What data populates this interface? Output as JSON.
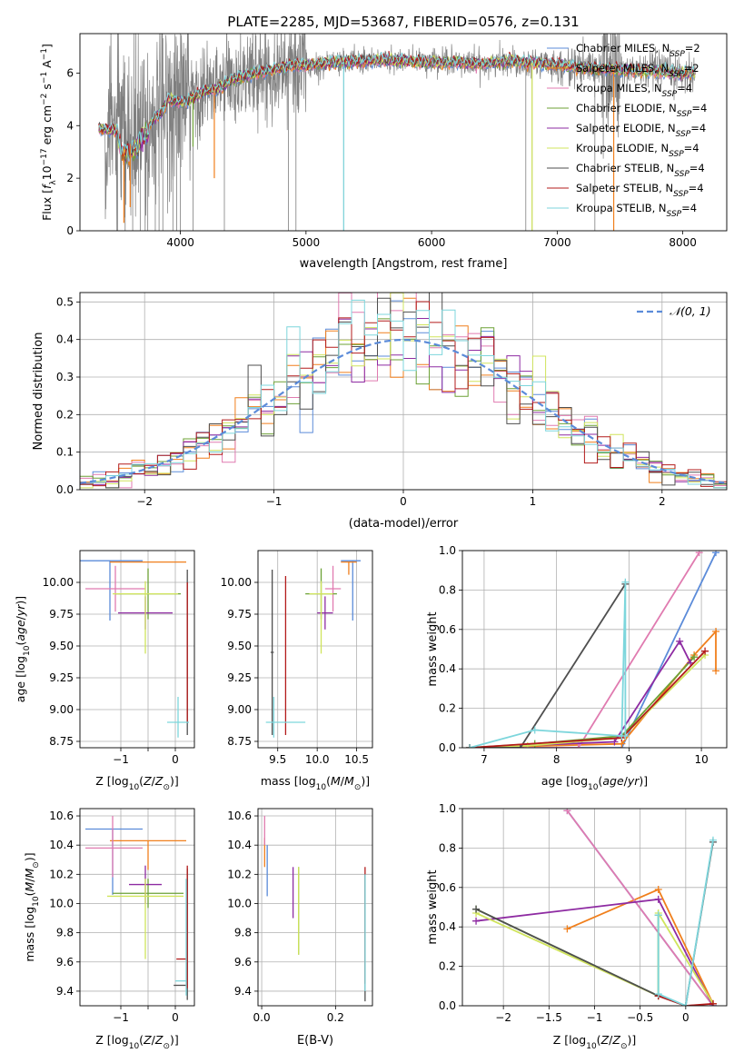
{
  "title": "PLATE=2285, MJD=53687, FIBERID=0576, z=0.131",
  "colors": {
    "c0": "#5b8bd9",
    "c1": "#f07f1c",
    "c2": "#e07bb0",
    "c3": "#6ca136",
    "c4": "#8e2ba2",
    "c5": "#d0e45c",
    "c6": "#4f4f4f",
    "c7": "#b31b1b",
    "c8": "#7dd6dc",
    "data": "#7f7f7f",
    "normal": "#5b8bd9",
    "grid": "#b0b0b0"
  },
  "legend_models": [
    {
      "base": "Chabrier MILES, N",
      "sub": "SSP",
      "eq": "=2"
    },
    {
      "base": "Salpeter MILES, N",
      "sub": "SSP",
      "eq": "=2"
    },
    {
      "base": "Kroupa MILES, N",
      "sub": "SSP",
      "eq": "=4"
    },
    {
      "base": "Chabrier ELODIE, N",
      "sub": "SSP",
      "eq": "=4"
    },
    {
      "base": "Salpeter ELODIE, N",
      "sub": "SSP",
      "eq": "=4"
    },
    {
      "base": "Kroupa ELODIE, N",
      "sub": "SSP",
      "eq": "=4"
    },
    {
      "base": "Chabrier STELIB, N",
      "sub": "SSP",
      "eq": "=4"
    },
    {
      "base": "Salpeter STELIB, N",
      "sub": "SSP",
      "eq": "=4"
    },
    {
      "base": "Kroupa STELIB, N",
      "sub": "SSP",
      "eq": "=4"
    }
  ],
  "chart_data": [
    {
      "id": "spectrum",
      "type": "line",
      "xlabel": "wavelength [Angstrom, rest frame]",
      "ylabel": "Flux [fλ10⁻¹⁷ erg cm⁻² s⁻¹ A⁻¹]",
      "xlim": [
        3200,
        8350
      ],
      "ylim": [
        0,
        7.5
      ],
      "xticks": [
        4000,
        5000,
        6000,
        7000,
        8000
      ],
      "yticks": [
        0,
        2,
        4,
        6
      ],
      "grid": false,
      "legend_position": "top-right",
      "model_continuum": {
        "x": [
          3350,
          3500,
          3550,
          3650,
          3700,
          3750,
          3800,
          3850,
          3900,
          4000,
          4050,
          4100,
          4200,
          4300,
          4400,
          4500,
          4600,
          4700,
          4800,
          4900,
          5000,
          5200,
          5400,
          5600,
          5800,
          6000,
          6200,
          6400,
          6600,
          6800,
          7000,
          7200,
          7400,
          7600,
          7800,
          8000,
          8100
        ],
        "y": [
          3.9,
          3.8,
          3.2,
          3.4,
          3.9,
          4.0,
          4.3,
          4.5,
          5.0,
          4.9,
          4.9,
          5.1,
          5.3,
          5.4,
          5.7,
          5.9,
          6.0,
          6.1,
          6.2,
          6.3,
          6.3,
          6.4,
          6.45,
          6.5,
          6.45,
          6.4,
          6.4,
          6.35,
          6.45,
          6.4,
          6.3,
          6.2,
          6.15,
          6.1,
          6.05,
          6.0,
          6.0
        ]
      },
      "data_series": {
        "name": "data",
        "x_range": [
          3350,
          8100
        ],
        "noise_spikes_x": [
          3500,
          3560,
          3620,
          3680,
          3740,
          3800,
          3830,
          3860,
          3940,
          3970,
          4000,
          4100,
          4350,
          4860,
          4920,
          5300,
          6750,
          6800,
          7300,
          7450
        ]
      }
    },
    {
      "id": "residual_histogram",
      "type": "histogram",
      "xlabel": "(data-model)/error",
      "ylabel": "Normed distribution",
      "xlim": [
        -2.5,
        2.5
      ],
      "ylim": [
        0,
        0.525
      ],
      "xticks": [
        -2,
        -1,
        0,
        1,
        2
      ],
      "yticks": [
        0.0,
        0.1,
        0.2,
        0.3,
        0.4,
        0.5
      ],
      "grid": true,
      "legend_position": "top-right",
      "reference_curve": {
        "name": "𝒩(0, 1)",
        "mean": 0,
        "std": 1
      },
      "bin_width": 0.1
    },
    {
      "id": "age_vs_Z",
      "type": "errorbar",
      "xlabel": "Z [log10(Z/Z⊙)]",
      "ylabel": "age  [log10(age/yr)]",
      "xlim": [
        -1.75,
        0.35
      ],
      "ylim": [
        8.7,
        10.25
      ],
      "xticks": [
        -1,
        -0.5,
        0
      ],
      "xticklabels": [
        "−1",
        "",
        "0"
      ],
      "yticks": [
        8.75,
        9.0,
        9.25,
        9.5,
        9.75,
        10.0
      ],
      "series": [
        {
          "color": "c0",
          "x": -1.2,
          "y": 10.17,
          "xerr": [
            0.6,
            0.6
          ],
          "yerr": [
            0.47,
            0
          ]
        },
        {
          "color": "c1",
          "x": -0.5,
          "y": 10.16,
          "xerr": [
            0.7,
            0.7
          ],
          "yerr": [
            0,
            0
          ]
        },
        {
          "color": "c2",
          "x": -1.1,
          "y": 9.95,
          "xerr": [
            0.55,
            0.55
          ],
          "yerr": [
            0.18,
            0.18
          ]
        },
        {
          "color": "c3",
          "x": -0.5,
          "y": 9.91,
          "xerr": [
            0.6,
            0.6
          ],
          "yerr": [
            0.2,
            0.2
          ]
        },
        {
          "color": "c4",
          "x": -0.55,
          "y": 9.76,
          "xerr": [
            0.5,
            0.5
          ],
          "yerr": [
            0.13,
            0.13
          ]
        },
        {
          "color": "c5",
          "x": -0.55,
          "y": 9.91,
          "xerr": [
            0.6,
            0.6
          ],
          "yerr": [
            0.47,
            0.1
          ]
        },
        {
          "color": "c6",
          "x": 0.22,
          "y": 9.45,
          "xerr": [
            0,
            0
          ],
          "yerr": [
            0.65,
            0.65
          ]
        },
        {
          "color": "c7",
          "x": 0.22,
          "y": 9.45,
          "xerr": [
            0,
            0
          ],
          "yerr": [
            0.55,
            0.55
          ]
        },
        {
          "color": "c8",
          "x": 0.05,
          "y": 8.9,
          "xerr": [
            0.2,
            0.2
          ],
          "yerr": [
            0.12,
            0.2
          ]
        }
      ]
    },
    {
      "id": "age_vs_mass",
      "type": "errorbar",
      "xlabel": "mass [log10(M/M⊙)]",
      "ylabel": "",
      "xlim": [
        9.25,
        10.7
      ],
      "ylim": [
        8.7,
        10.25
      ],
      "xticks": [
        9.5,
        10.0,
        10.5
      ],
      "xticklabels": [
        "9.5",
        "10.0",
        "10.5"
      ],
      "yticks": [
        8.75,
        9.0,
        9.25,
        9.5,
        9.75,
        10.0
      ],
      "series": [
        {
          "color": "c0",
          "x": 10.45,
          "y": 10.17,
          "xerr": [
            0.15,
            0.1
          ],
          "yerr": [
            0.47,
            0
          ]
        },
        {
          "color": "c1",
          "x": 10.4,
          "y": 10.16,
          "xerr": [
            0.1,
            0.1
          ],
          "yerr": [
            0.1,
            0
          ]
        },
        {
          "color": "c2",
          "x": 10.2,
          "y": 9.95,
          "xerr": [
            0.1,
            0.1
          ],
          "yerr": [
            0.18,
            0.18
          ]
        },
        {
          "color": "c3",
          "x": 10.05,
          "y": 9.91,
          "xerr": [
            0.2,
            0.2
          ],
          "yerr": [
            0.2,
            0.2
          ]
        },
        {
          "color": "c4",
          "x": 10.1,
          "y": 9.76,
          "xerr": [
            0.1,
            0.1
          ],
          "yerr": [
            0.13,
            0.13
          ]
        },
        {
          "color": "c5",
          "x": 10.05,
          "y": 9.91,
          "xerr": [
            0.15,
            0.15
          ],
          "yerr": [
            0.47,
            0.1
          ]
        },
        {
          "color": "c6",
          "x": 9.43,
          "y": 9.45,
          "xerr": [
            0.02,
            0.02
          ],
          "yerr": [
            0.65,
            0.65
          ]
        },
        {
          "color": "c7",
          "x": 9.6,
          "y": 9.45,
          "xerr": [
            0,
            0
          ],
          "yerr": [
            0.65,
            0.6
          ]
        },
        {
          "color": "c8",
          "x": 9.45,
          "y": 8.9,
          "xerr": [
            0.1,
            0.4
          ],
          "yerr": [
            0.12,
            0.2
          ]
        }
      ]
    },
    {
      "id": "weight_vs_age",
      "type": "line",
      "xlabel": "age  [log10(age/yr)]",
      "ylabel": "mass weight",
      "xlim": [
        6.7,
        10.35
      ],
      "ylim": [
        0,
        1.0
      ],
      "xticks": [
        7,
        8,
        9,
        10
      ],
      "yticks": [
        0.0,
        0.2,
        0.4,
        0.6,
        0.8,
        1.0
      ],
      "series": [
        {
          "color": "c0",
          "x": [
            6.8,
            8.9,
            10.2
          ],
          "y": [
            0.0,
            0.0,
            0.99
          ]
        },
        {
          "color": "c1",
          "x": [
            6.8,
            8.9,
            9.9,
            10.2,
            10.2
          ],
          "y": [
            0.0,
            0.02,
            0.47,
            0.59,
            0.39
          ]
        },
        {
          "color": "c2",
          "x": [
            6.8,
            8.3,
            9.97
          ],
          "y": [
            0.0,
            0.0,
            0.99
          ]
        },
        {
          "color": "c3",
          "x": [
            6.8,
            7.7,
            8.9,
            9.9
          ],
          "y": [
            0.0,
            0.02,
            0.06,
            0.46
          ]
        },
        {
          "color": "c4",
          "x": [
            6.8,
            8.8,
            9.7,
            9.85
          ],
          "y": [
            0.0,
            0.03,
            0.54,
            0.43
          ]
        },
        {
          "color": "c5",
          "x": [
            6.8,
            7.6,
            8.9,
            10.05
          ],
          "y": [
            0.0,
            0.01,
            0.05,
            0.47
          ]
        },
        {
          "color": "c6",
          "x": [
            6.8,
            7.5,
            8.95
          ],
          "y": [
            0.0,
            0.0,
            0.83
          ]
        },
        {
          "color": "c7",
          "x": [
            6.8,
            8.9,
            10.05
          ],
          "y": [
            0.0,
            0.05,
            0.49
          ]
        },
        {
          "color": "c8",
          "x": [
            6.8,
            7.7,
            8.9,
            8.95,
            8.95
          ],
          "y": [
            0.0,
            0.09,
            0.06,
            0.84,
            0.06
          ]
        }
      ]
    },
    {
      "id": "mass_vs_Z",
      "type": "errorbar",
      "xlabel": "Z [log10(Z/Z⊙)]",
      "ylabel": "mass [log10(M/M⊙)]",
      "xlim": [
        -1.75,
        0.35
      ],
      "ylim": [
        9.3,
        10.65
      ],
      "xticks": [
        -1,
        -0.5,
        0
      ],
      "xticklabels": [
        "−1",
        "",
        "0"
      ],
      "yticks": [
        9.4,
        9.6,
        9.8,
        10.0,
        10.2,
        10.4,
        10.6
      ],
      "series": [
        {
          "color": "c0",
          "x": -1.15,
          "y": 10.51,
          "xerr": [
            0.5,
            0.55
          ],
          "yerr": [
            0.45,
            0
          ]
        },
        {
          "color": "c1",
          "x": -0.5,
          "y": 10.43,
          "xerr": [
            0.7,
            0.7
          ],
          "yerr": [
            0.2,
            0
          ]
        },
        {
          "color": "c2",
          "x": -1.15,
          "y": 10.38,
          "xerr": [
            0.5,
            0.55
          ],
          "yerr": [
            0.2,
            0.22
          ]
        },
        {
          "color": "c3",
          "x": -0.5,
          "y": 10.07,
          "xerr": [
            0.65,
            0.65
          ],
          "yerr": [
            0.1,
            0.1
          ]
        },
        {
          "color": "c4",
          "x": -0.55,
          "y": 10.13,
          "xerr": [
            0.3,
            0.3
          ],
          "yerr": [
            0.13,
            0.13
          ]
        },
        {
          "color": "c5",
          "x": -0.55,
          "y": 10.05,
          "xerr": [
            0.7,
            0.7
          ],
          "yerr": [
            0.43,
            0.12
          ]
        },
        {
          "color": "c6",
          "x": 0.22,
          "y": 9.44,
          "xerr": [
            0.25,
            0
          ],
          "yerr": [
            0.1,
            0.8
          ]
        },
        {
          "color": "c7",
          "x": 0.22,
          "y": 9.62,
          "xerr": [
            0.2,
            0
          ],
          "yerr": [
            0.2,
            0.64
          ]
        },
        {
          "color": "c8",
          "x": 0.2,
          "y": 9.47,
          "xerr": [
            0.2,
            0
          ],
          "yerr": [
            0.1,
            0.7
          ]
        }
      ]
    },
    {
      "id": "mass_vs_EBV",
      "type": "errorbar",
      "xlabel": "E(B-V)",
      "ylabel": "",
      "xlim": [
        -0.01,
        0.3
      ],
      "ylim": [
        9.3,
        10.65
      ],
      "xticks": [
        0.0,
        0.2
      ],
      "xticklabels": [
        "0.0",
        "0.2"
      ],
      "yticks": [
        9.4,
        9.6,
        9.8,
        10.0,
        10.2,
        10.4,
        10.6
      ],
      "series": [
        {
          "color": "c0",
          "x": 0.015,
          "y": 10.4,
          "xerr": [
            0,
            0
          ],
          "yerr": [
            0.35,
            0
          ]
        },
        {
          "color": "c1",
          "x": 0.008,
          "y": 10.45,
          "xerr": [
            0,
            0
          ],
          "yerr": [
            0.2,
            0
          ]
        },
        {
          "color": "c2",
          "x": 0.008,
          "y": 10.45,
          "xerr": [
            0,
            0
          ],
          "yerr": [
            0.05,
            0.15
          ]
        },
        {
          "color": "c3",
          "x": 0.1,
          "y": 10.0,
          "xerr": [
            0,
            0
          ],
          "yerr": [
            0.35,
            0.25
          ]
        },
        {
          "color": "c4",
          "x": 0.085,
          "y": 10.1,
          "xerr": [
            0,
            0
          ],
          "yerr": [
            0.2,
            0.15
          ]
        },
        {
          "color": "c5",
          "x": 0.1,
          "y": 9.95,
          "xerr": [
            0,
            0
          ],
          "yerr": [
            0.3,
            0.3
          ]
        },
        {
          "color": "c6",
          "x": 0.28,
          "y": 9.65,
          "xerr": [
            0,
            0
          ],
          "yerr": [
            0.32,
            0.55
          ]
        },
        {
          "color": "c7",
          "x": 0.28,
          "y": 9.95,
          "xerr": [
            0,
            0
          ],
          "yerr": [
            0.5,
            0.3
          ]
        },
        {
          "color": "c8",
          "x": 0.28,
          "y": 9.7,
          "xerr": [
            0,
            0
          ],
          "yerr": [
            0.3,
            0.5
          ]
        }
      ]
    },
    {
      "id": "weight_vs_Z",
      "type": "line",
      "xlabel": "Z [log10(Z/Z⊙)]",
      "ylabel": "mass weight",
      "xlim": [
        -2.45,
        0.45
      ],
      "ylim": [
        0,
        1.0
      ],
      "xticks": [
        -2.0,
        -1.5,
        -1.0,
        -0.5,
        0.0
      ],
      "yticks": [
        0.0,
        0.2,
        0.4,
        0.6,
        0.8,
        1.0
      ],
      "series": [
        {
          "color": "c0",
          "x": [
            -1.3,
            0.3
          ],
          "y": [
            0.99,
            0.0
          ]
        },
        {
          "color": "c1",
          "x": [
            -1.3,
            -0.3,
            0.3
          ],
          "y": [
            0.39,
            0.59,
            0.01
          ]
        },
        {
          "color": "c2",
          "x": [
            -1.3,
            0.3
          ],
          "y": [
            0.99,
            0.0
          ]
        },
        {
          "color": "c3",
          "x": [
            -2.3,
            -0.3,
            -0.3
          ],
          "y": [
            0.49,
            0.05,
            0.46
          ]
        },
        {
          "color": "c4",
          "x": [
            -2.3,
            -0.3,
            0.3
          ],
          "y": [
            0.43,
            0.54,
            0.0
          ]
        },
        {
          "color": "c5",
          "x": [
            -2.3,
            -0.3,
            -0.3,
            0.3
          ],
          "y": [
            0.47,
            0.05,
            0.47,
            0.01
          ]
        },
        {
          "color": "c6",
          "x": [
            -2.3,
            -0.3,
            0.0,
            0.3
          ],
          "y": [
            0.49,
            0.05,
            0.0,
            0.83
          ]
        },
        {
          "color": "c7",
          "x": [
            -0.3,
            0.0,
            0.3
          ],
          "y": [
            0.05,
            0.0,
            0.01
          ]
        },
        {
          "color": "c8",
          "x": [
            -0.3,
            -0.3,
            0.0,
            0.3
          ],
          "y": [
            0.46,
            0.06,
            0.0,
            0.84
          ]
        }
      ]
    }
  ]
}
